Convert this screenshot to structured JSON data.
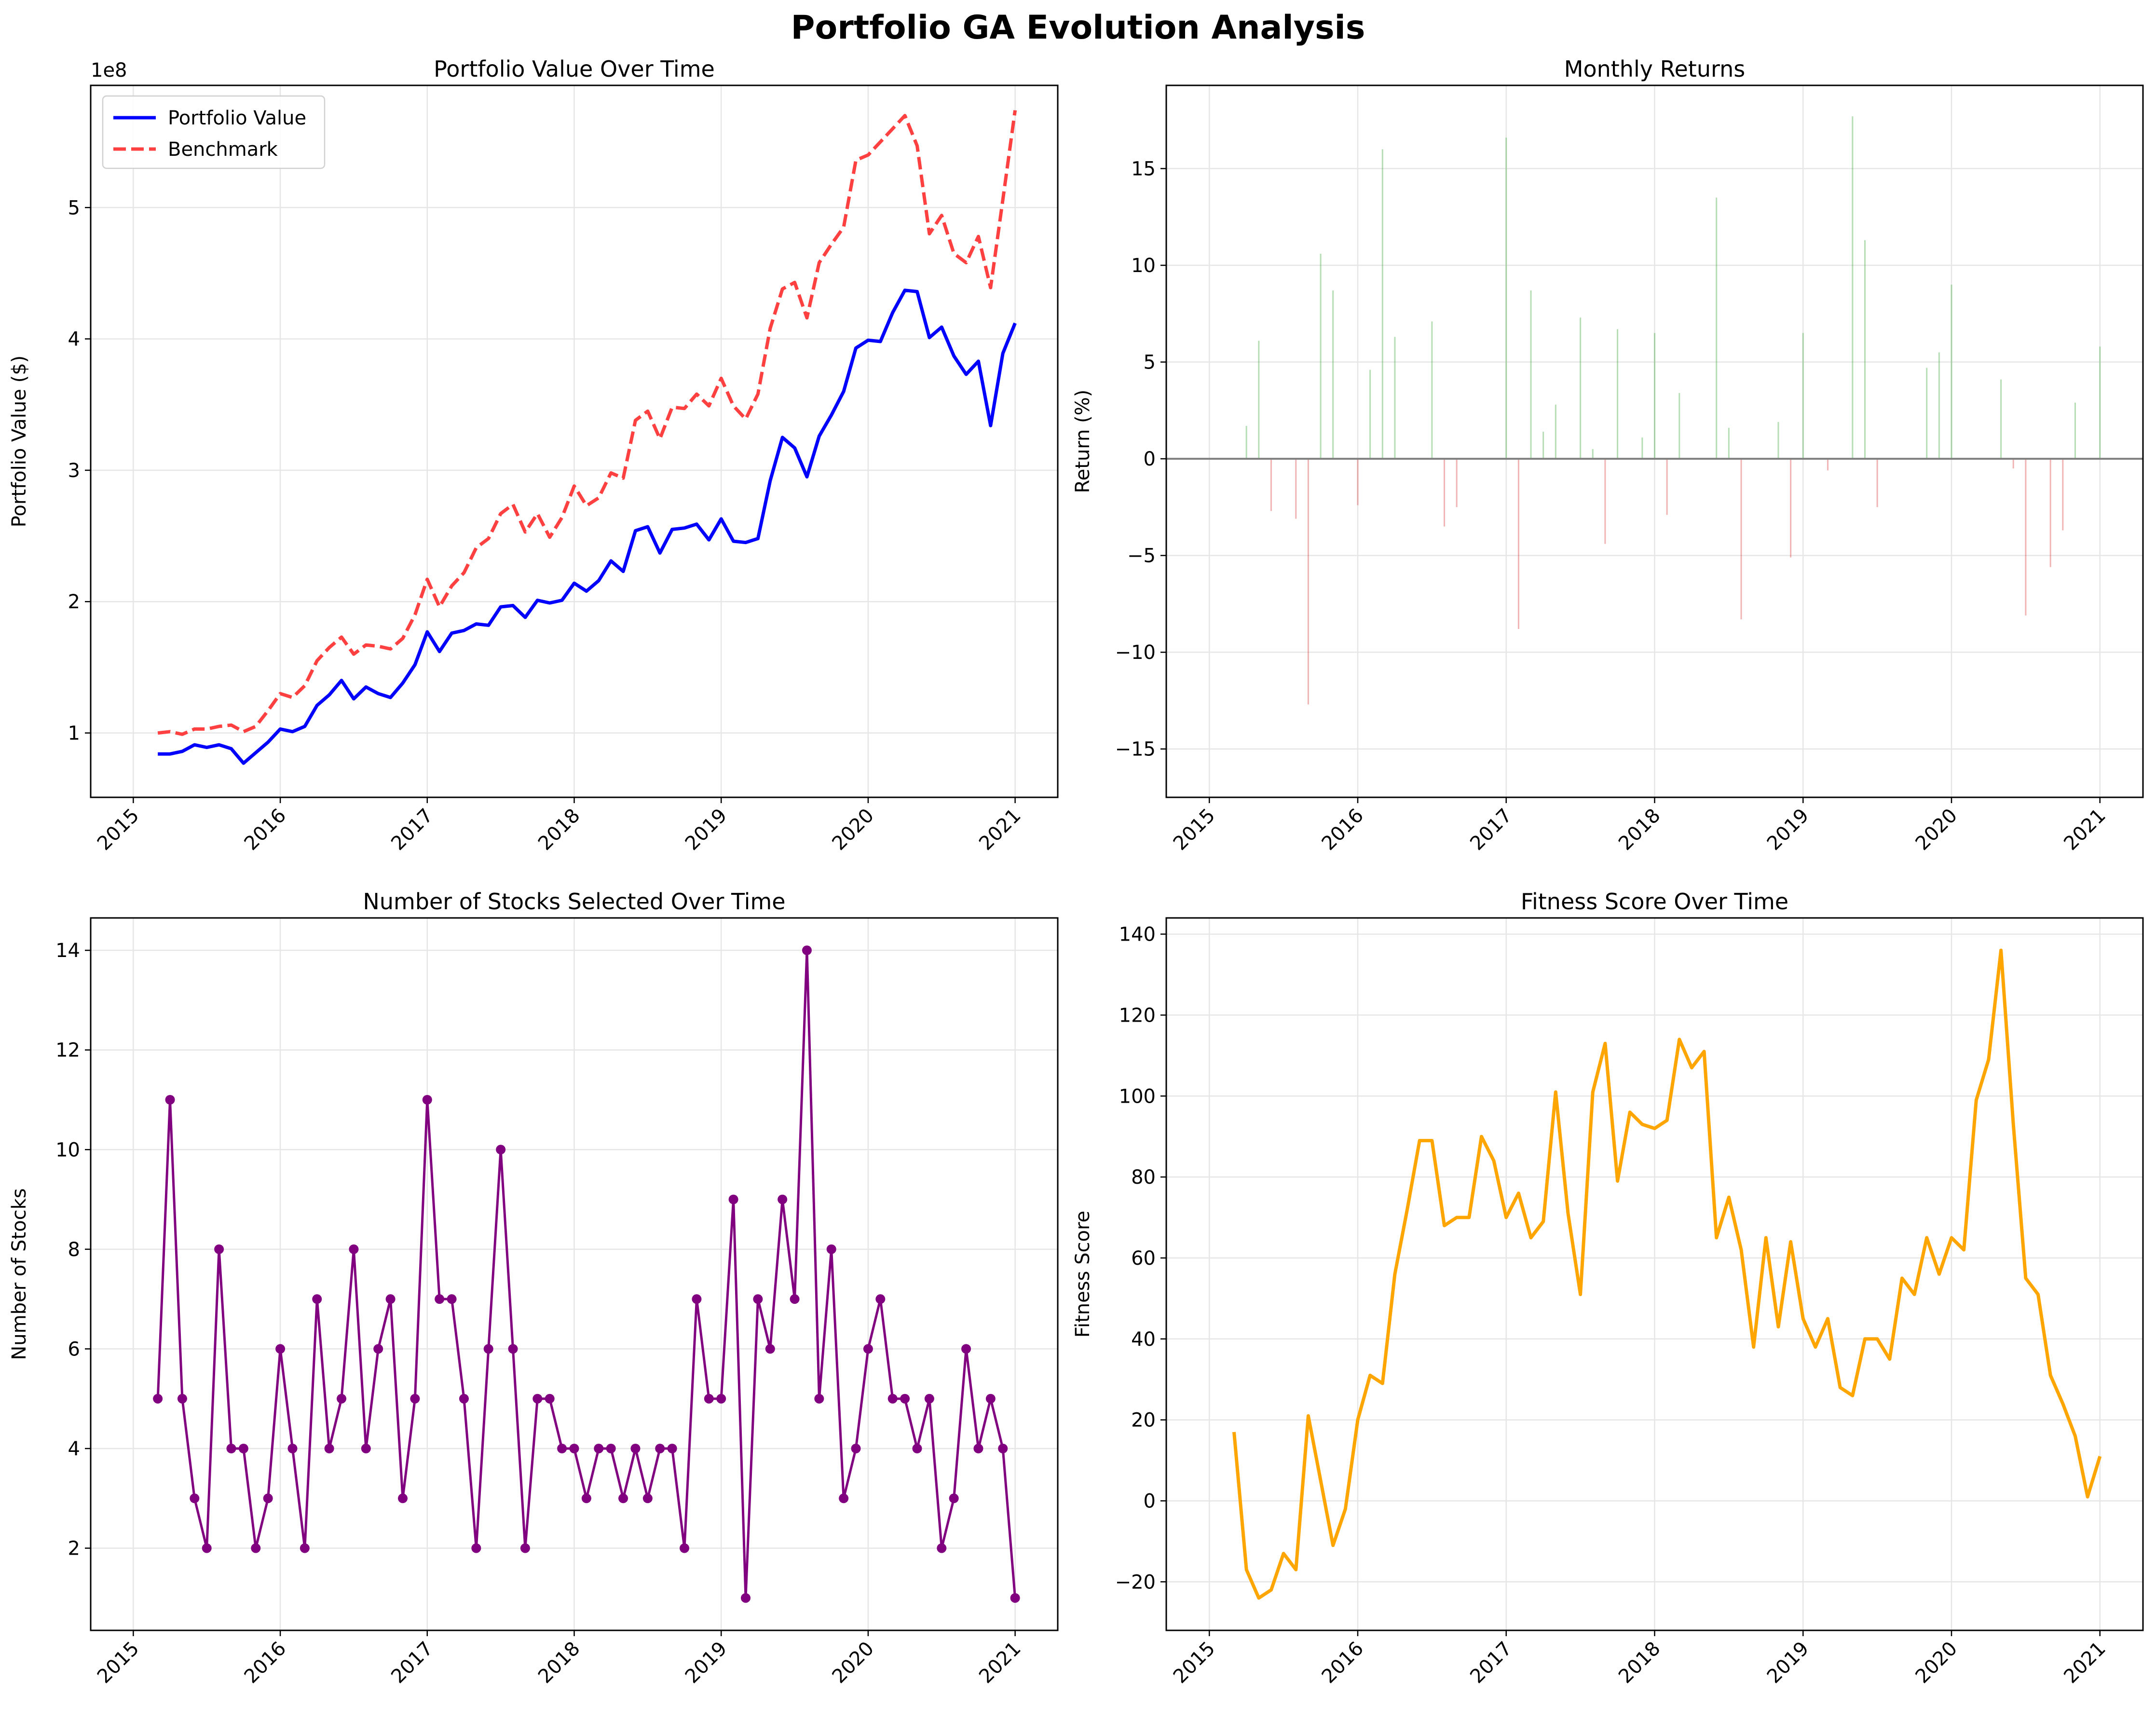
{
  "figure": {
    "suptitle": "Portfolio GA Evolution Analysis"
  },
  "months": [
    "2015-03",
    "2015-04",
    "2015-05",
    "2015-06",
    "2015-07",
    "2015-08",
    "2015-09",
    "2015-10",
    "2015-11",
    "2015-12",
    "2016-01",
    "2016-02",
    "2016-03",
    "2016-04",
    "2016-05",
    "2016-06",
    "2016-07",
    "2016-08",
    "2016-09",
    "2016-10",
    "2016-11",
    "2016-12",
    "2017-01",
    "2017-02",
    "2017-03",
    "2017-04",
    "2017-05",
    "2017-06",
    "2017-07",
    "2017-08",
    "2017-09",
    "2017-10",
    "2017-11",
    "2017-12",
    "2018-01",
    "2018-02",
    "2018-03",
    "2018-04",
    "2018-05",
    "2018-06",
    "2018-07",
    "2018-08",
    "2018-09",
    "2018-10",
    "2018-11",
    "2018-12",
    "2019-01",
    "2019-02",
    "2019-03",
    "2019-04",
    "2019-05",
    "2019-06",
    "2019-07",
    "2019-08",
    "2019-09",
    "2019-10",
    "2019-11",
    "2019-12",
    "2020-01",
    "2020-02",
    "2020-03",
    "2020-04",
    "2020-05",
    "2020-06",
    "2020-07",
    "2020-08",
    "2020-09",
    "2020-10",
    "2020-11",
    "2020-12",
    "2021-01"
  ],
  "chart_data": [
    {
      "type": "line",
      "title": "Portfolio Value Over Time",
      "xlabel": "",
      "ylabel": "Portfolio Value ($)",
      "y_offset_label": "1e8",
      "y_scale": 100000000,
      "ylim": [
        0.51,
        5.93
      ],
      "yticks": [
        1,
        2,
        3,
        4,
        5
      ],
      "xticks": [
        "2015",
        "2016",
        "2017",
        "2018",
        "2019",
        "2020",
        "2021"
      ],
      "grid": true,
      "legend": "top-left",
      "series": [
        {
          "name": "Portfolio Value",
          "color": "#0000ff",
          "style": "solid",
          "values": [
            0.84,
            0.84,
            0.86,
            0.91,
            0.89,
            0.91,
            0.88,
            0.77,
            0.85,
            0.93,
            1.03,
            1.01,
            1.05,
            1.21,
            1.29,
            1.4,
            1.26,
            1.35,
            1.3,
            1.27,
            1.38,
            1.52,
            1.77,
            1.62,
            1.76,
            1.78,
            1.83,
            1.82,
            1.96,
            1.97,
            1.88,
            2.01,
            1.99,
            2.01,
            2.14,
            2.08,
            2.16,
            2.31,
            2.23,
            2.54,
            2.57,
            2.37,
            2.55,
            2.56,
            2.59,
            2.47,
            2.63,
            2.46,
            2.45,
            2.48,
            2.92,
            3.25,
            3.17,
            2.95,
            3.26,
            3.42,
            3.6,
            3.93,
            3.99,
            3.98,
            4.2,
            4.37,
            4.36,
            4.01,
            4.09,
            3.87,
            3.73,
            3.83,
            3.34,
            3.89,
            4.12
          ]
        },
        {
          "name": "Benchmark",
          "color": "#ff4040",
          "style": "dashed",
          "values": [
            1.0,
            1.01,
            0.99,
            1.03,
            1.03,
            1.05,
            1.06,
            1.01,
            1.05,
            1.17,
            1.3,
            1.27,
            1.36,
            1.55,
            1.65,
            1.73,
            1.6,
            1.67,
            1.66,
            1.64,
            1.72,
            1.9,
            2.17,
            1.96,
            2.12,
            2.22,
            2.41,
            2.48,
            2.67,
            2.74,
            2.53,
            2.67,
            2.49,
            2.64,
            2.88,
            2.73,
            2.79,
            2.98,
            2.94,
            3.38,
            3.45,
            3.24,
            3.48,
            3.47,
            3.58,
            3.49,
            3.7,
            3.49,
            3.39,
            3.58,
            4.08,
            4.38,
            4.43,
            4.16,
            4.58,
            4.72,
            4.85,
            5.36,
            5.4,
            5.5,
            5.6,
            5.7,
            5.47,
            4.8,
            4.94,
            4.65,
            4.58,
            4.78,
            4.39,
            5.06,
            5.74
          ]
        }
      ]
    },
    {
      "type": "bar",
      "title": "Monthly Returns",
      "xlabel": "",
      "ylabel": "Return (%)",
      "ylim": [
        -17.5,
        19.3
      ],
      "yticks": [
        -15,
        -10,
        -5,
        0,
        5,
        10,
        15
      ],
      "xticks": [
        "2015",
        "2016",
        "2017",
        "2018",
        "2019",
        "2020",
        "2021"
      ],
      "grid": true,
      "positive_color": "#2ca02c",
      "negative_color": "#d62728",
      "zero_line_color": "#808080",
      "values": [
        0.0,
        1.7,
        6.1,
        -2.7,
        0.0,
        -3.1,
        -12.7,
        10.6,
        8.7,
        0.0,
        -2.4,
        4.6,
        16.0,
        6.3,
        0.0,
        0.0,
        7.1,
        -3.5,
        -2.5,
        0.0,
        0.0,
        0.0,
        16.6,
        -8.8,
        8.7,
        1.4,
        2.8,
        0.0,
        7.3,
        0.5,
        -4.4,
        6.7,
        0.0,
        1.1,
        6.5,
        -2.9,
        3.4,
        0.0,
        0.0,
        13.5,
        1.6,
        -8.3,
        0.0,
        0.0,
        1.9,
        -5.1,
        6.5,
        0.0,
        -0.6,
        0.0,
        17.7,
        11.3,
        -2.5,
        0.0,
        0.0,
        0.0,
        4.7,
        5.5,
        9.0,
        0.0,
        0.0,
        0.0,
        4.1,
        -0.5,
        -8.1,
        0.0,
        -5.6,
        -3.7,
        2.9,
        0.0,
        5.8
      ]
    },
    {
      "type": "line",
      "title": "Number of Stocks Selected Over Time",
      "xlabel": "",
      "ylabel": "Number of Stocks",
      "ylim": [
        0.35,
        14.65
      ],
      "yticks": [
        2,
        4,
        6,
        8,
        10,
        12,
        14
      ],
      "xticks": [
        "2015",
        "2016",
        "2017",
        "2018",
        "2019",
        "2020",
        "2021"
      ],
      "grid": true,
      "markers": true,
      "color": "#800080",
      "values": [
        5,
        11,
        5,
        3,
        2,
        8,
        4,
        4,
        2,
        3,
        6,
        4,
        2,
        7,
        4,
        5,
        8,
        4,
        6,
        7,
        3,
        5,
        11,
        7,
        7,
        5,
        2,
        6,
        10,
        6,
        2,
        5,
        5,
        4,
        4,
        3,
        4,
        4,
        3,
        4,
        3,
        4,
        4,
        2,
        7,
        5,
        5,
        9,
        1,
        7,
        6,
        9,
        7,
        14,
        5,
        8,
        3,
        4,
        6,
        7,
        5,
        5,
        4,
        5,
        2,
        3,
        6,
        4,
        5,
        4,
        1
      ]
    },
    {
      "type": "line",
      "title": "Fitness Score Over Time",
      "xlabel": "",
      "ylabel": "Fitness Score",
      "ylim": [
        -32,
        144
      ],
      "yticks": [
        -20,
        0,
        20,
        40,
        60,
        80,
        100,
        120,
        140
      ],
      "xticks": [
        "2015",
        "2016",
        "2017",
        "2018",
        "2019",
        "2020",
        "2021"
      ],
      "grid": true,
      "color": "#ffa500",
      "values": [
        17,
        -17,
        -24,
        -22,
        -13,
        -17,
        21,
        5,
        -11,
        -2,
        20,
        31,
        29,
        56,
        72,
        89,
        89,
        68,
        70,
        70,
        90,
        84,
        70,
        76,
        65,
        69,
        101,
        71,
        51,
        101,
        113,
        79,
        96,
        93,
        92,
        94,
        114,
        107,
        111,
        65,
        75,
        62,
        38,
        65,
        43,
        64,
        45,
        38,
        45,
        28,
        26,
        40,
        40,
        35,
        55,
        51,
        65,
        56,
        65,
        62,
        99,
        109,
        136,
        93,
        55,
        51,
        31,
        24,
        16,
        1,
        11
      ]
    }
  ]
}
